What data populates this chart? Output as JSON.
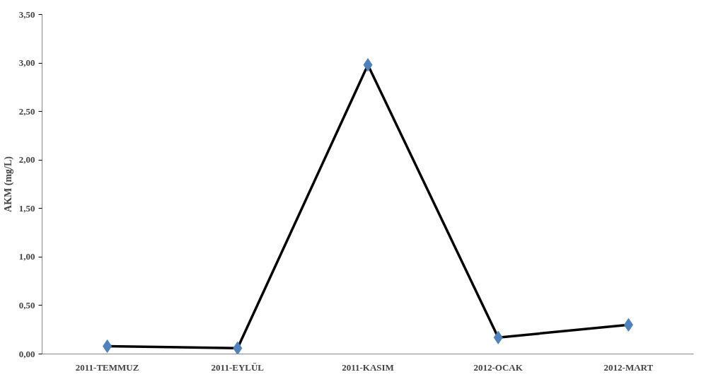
{
  "chart_data": {
    "type": "line",
    "ylabel": "AKM (mg/L)",
    "categories": [
      "2011-TEMMUZ",
      "2011-EYLÜL",
      "2011-KASIM",
      "2012-OCAK",
      "2012-MART"
    ],
    "series": [
      {
        "color": "#000000",
        "colors": [
          "#4f81bd",
          "#4f81bd",
          "#4f81bd",
          "#4f81bd",
          "#4f81bd"
        ],
        "values": [
          0.08,
          0.06,
          2.98,
          0.17,
          0.3
        ]
      }
    ],
    "marker": "diamond",
    "line_style": "solid",
    "ylim": [
      0,
      3.5
    ],
    "yticks": [
      {
        "value": 0,
        "label": "0,00"
      },
      {
        "value": 0.5,
        "label": "0,50"
      },
      {
        "value": 1,
        "label": "1,00"
      },
      {
        "value": 1.5,
        "label": "1,50"
      },
      {
        "value": 2,
        "label": "2,00"
      },
      {
        "value": 2.5,
        "label": "2,50"
      },
      {
        "value": 3,
        "label": "3,00"
      },
      {
        "value": 3.5,
        "label": "3,50"
      }
    ],
    "grid": false
  }
}
